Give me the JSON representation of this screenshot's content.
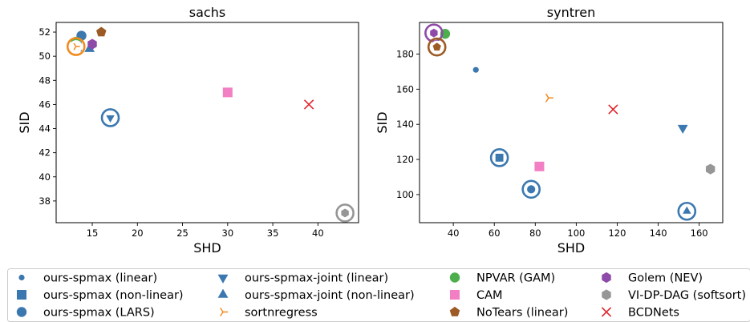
{
  "chart_data": [
    {
      "type": "scatter",
      "title": "sachs",
      "xlabel": "SHD",
      "ylabel": "SID",
      "xlim": [
        11,
        44.5
      ],
      "ylim": [
        36.2,
        52.8
      ],
      "xticks": [
        15,
        20,
        25,
        30,
        35,
        40
      ],
      "yticks": [
        38,
        40,
        42,
        44,
        46,
        48,
        50,
        52
      ],
      "grid": false,
      "points": [
        {
          "series": "ours-spmax (LARS)",
          "x": 13.8,
          "y": 51.7,
          "circled": false
        },
        {
          "series": "ours-spmax (non-linear)",
          "x": 13.3,
          "y": 50.8,
          "circled": false
        },
        {
          "series": "NPVAR (GAM)",
          "x": 13.2,
          "y": 51.2,
          "circled": false
        },
        {
          "series": "ours-spmax-joint (non-linear)",
          "x": 14.7,
          "y": 50.6,
          "circled": false
        },
        {
          "series": "Golem (NEV)",
          "x": 15.0,
          "y": 51.0,
          "circled": false
        },
        {
          "series": "NoTears (linear)",
          "x": 16.0,
          "y": 52.0,
          "circled": false
        },
        {
          "series": "sortnregress",
          "x": 13.2,
          "y": 50.8,
          "circled": true
        },
        {
          "series": "ours-spmax-joint (linear)",
          "x": 17.0,
          "y": 44.9,
          "circled": true
        },
        {
          "series": "CAM",
          "x": 30.0,
          "y": 47.0,
          "circled": false
        },
        {
          "series": "BCDNets",
          "x": 39.0,
          "y": 46.0,
          "circled": false
        },
        {
          "series": "VI-DP-DAG (softsort)",
          "x": 43.0,
          "y": 37.0,
          "circled": true
        }
      ]
    },
    {
      "type": "scatter",
      "title": "syntren",
      "xlabel": "SHD",
      "ylabel": "SID",
      "xlim": [
        23.5,
        171.5
      ],
      "ylim": [
        84,
        198
      ],
      "xticks": [
        40,
        60,
        80,
        100,
        120,
        140,
        160
      ],
      "yticks": [
        100,
        120,
        140,
        160,
        180
      ],
      "grid": false,
      "points": [
        {
          "series": "ours-spmax (linear)",
          "x": 51,
          "y": 171,
          "circled": false
        },
        {
          "series": "NPVAR (GAM)",
          "x": 36,
          "y": 191.5,
          "circled": false
        },
        {
          "series": "Golem (NEV)",
          "x": 30.5,
          "y": 192,
          "circled": true
        },
        {
          "series": "NoTears (linear)",
          "x": 32,
          "y": 184,
          "circled": true
        },
        {
          "series": "sortnregress",
          "x": 86.5,
          "y": 155,
          "circled": false
        },
        {
          "series": "BCDNets",
          "x": 118,
          "y": 148.5,
          "circled": false
        },
        {
          "series": "ours-spmax-joint (linear)",
          "x": 152,
          "y": 138,
          "circled": false
        },
        {
          "series": "ours-spmax (non-linear)",
          "x": 62.5,
          "y": 121,
          "circled": true
        },
        {
          "series": "CAM",
          "x": 82,
          "y": 116,
          "circled": false
        },
        {
          "series": "VI-DP-DAG (softsort)",
          "x": 165.5,
          "y": 114.5,
          "circled": false
        },
        {
          "series": "ours-spmax (LARS)",
          "x": 78,
          "y": 103,
          "circled": true
        },
        {
          "series": "ours-spmax-joint (non-linear)",
          "x": 154,
          "y": 90.5,
          "circled": true
        }
      ]
    }
  ],
  "legend": {
    "placement": "bottom",
    "columns": [
      [
        "ours-spmax (linear)",
        "ours-spmax (non-linear)",
        "ours-spmax (LARS)"
      ],
      [
        "ours-spmax-joint (linear)",
        "ours-spmax-joint (non-linear)",
        "sortnregress"
      ],
      [
        "NPVAR (GAM)",
        "CAM",
        "NoTears (linear)"
      ],
      [
        "Golem (NEV)",
        "VI-DP-DAG (softsort)",
        "BCDNets"
      ]
    ]
  },
  "series_styles": {
    "ours-spmax (linear)": {
      "marker": "small-circle",
      "color": "#3b78b0"
    },
    "ours-spmax (non-linear)": {
      "marker": "square",
      "color": "#3b78b0"
    },
    "ours-spmax (LARS)": {
      "marker": "circle",
      "color": "#3b78b0"
    },
    "ours-spmax-joint (linear)": {
      "marker": "triangle-down",
      "color": "#3b78b0"
    },
    "ours-spmax-joint (non-linear)": {
      "marker": "triangle-up",
      "color": "#3b78b0"
    },
    "sortnregress": {
      "marker": "tri-mark",
      "color": "#f28a1c"
    },
    "NPVAR (GAM)": {
      "marker": "circle",
      "color": "#4cae4c"
    },
    "CAM": {
      "marker": "square",
      "color": "#f27fc4"
    },
    "NoTears (linear)": {
      "marker": "pentagon",
      "color": "#9c5a24"
    },
    "Golem (NEV)": {
      "marker": "hexagon",
      "color": "#8e4aa8"
    },
    "VI-DP-DAG (softsort)": {
      "marker": "hexagon",
      "color": "#969696"
    },
    "BCDNets": {
      "marker": "x",
      "color": "#e0242b"
    }
  }
}
